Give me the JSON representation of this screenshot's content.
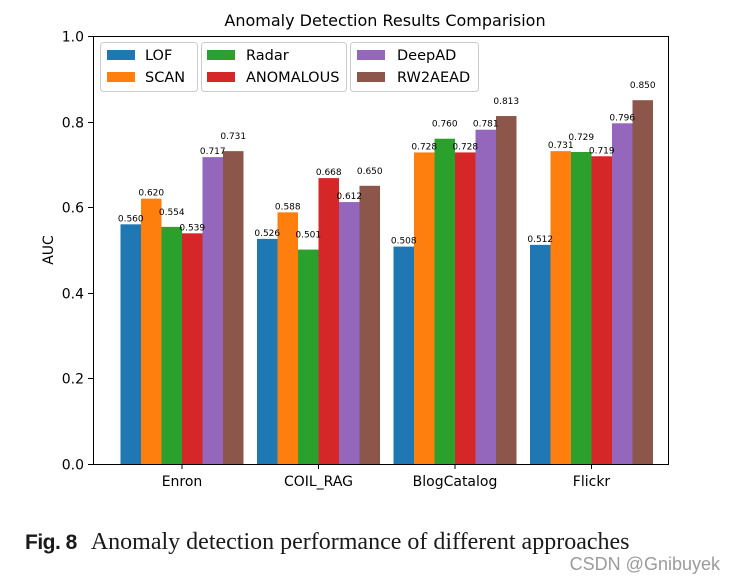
{
  "chart_data": {
    "type": "bar",
    "title": "Anomaly Detection Results Comparision",
    "ylabel": "AUC",
    "ylim": [
      0.0,
      1.0
    ],
    "yticks": [
      "0.0",
      "0.2",
      "0.4",
      "0.6",
      "0.8",
      "1.0"
    ],
    "grid": false,
    "legend_position": "top-left",
    "categories": [
      "Enron",
      "COIL_RAG",
      "BlogCatalog",
      "Flickr"
    ],
    "series": [
      {
        "name": "LOF",
        "color": "#1f77b4",
        "values": [
          0.56,
          0.526,
          0.508,
          0.512
        ],
        "value_labels": [
          "0.560",
          "0.526",
          "0.508",
          "0.512"
        ]
      },
      {
        "name": "SCAN",
        "color": "#ff7f0e",
        "values": [
          0.62,
          0.588,
          0.728,
          0.731
        ],
        "value_labels": [
          "0.620",
          "0.588",
          "0.728",
          "0.731"
        ]
      },
      {
        "name": "Radar",
        "color": "#2ca02c",
        "values": [
          0.554,
          0.501,
          0.76,
          0.729
        ],
        "value_labels": [
          "0.554",
          "0.501",
          "0.760",
          "0.729"
        ]
      },
      {
        "name": "ANOMALOUS",
        "color": "#d62728",
        "values": [
          0.539,
          0.668,
          0.728,
          0.719
        ],
        "value_labels": [
          "0.539",
          "0.668",
          "0.728",
          "0.719"
        ]
      },
      {
        "name": "DeepAD",
        "color": "#9467bd",
        "values": [
          0.717,
          0.612,
          0.781,
          0.796
        ],
        "value_labels": [
          "0.717",
          "0.612",
          "0.781",
          "0.796"
        ]
      },
      {
        "name": "RW2AEAD",
        "color": "#8c564b",
        "values": [
          0.731,
          0.65,
          0.813,
          0.85
        ],
        "value_labels": [
          "0.731",
          "0.650",
          "0.813",
          "0.850"
        ]
      }
    ]
  },
  "caption": {
    "label": "Fig. 8",
    "text": "Anomaly detection performance of different approaches"
  },
  "watermark": "CSDN @Gnibuyek"
}
